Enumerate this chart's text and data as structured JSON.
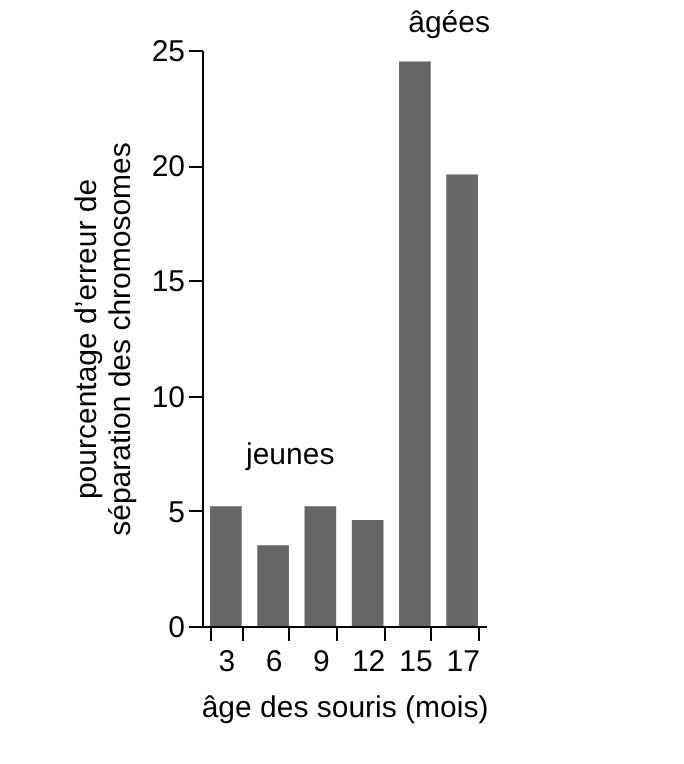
{
  "chart_data": {
    "type": "bar",
    "xlabel": "âge des souris (mois)",
    "ylabel": "pourcentage d’erreur de\nséparation des chromosomes",
    "categories": [
      "3",
      "6",
      "9",
      "12",
      "15",
      "17"
    ],
    "values": [
      5.2,
      3.5,
      5.2,
      4.6,
      24.5,
      19.6
    ],
    "color": "#666666",
    "ylim": [
      0,
      25
    ],
    "yticks": [
      0,
      5,
      10,
      15,
      20,
      25
    ],
    "grid": false,
    "annotations": [
      "jeunes",
      "âgées"
    ]
  }
}
